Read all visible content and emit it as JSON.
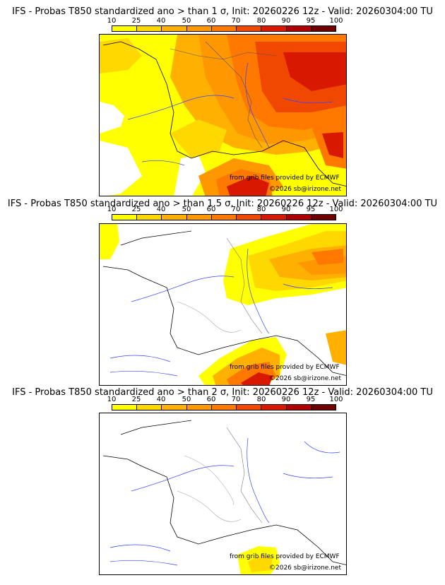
{
  "colorbar": {
    "ticks": [
      "10",
      "25",
      "40",
      "50",
      "60",
      "70",
      "80",
      "90",
      "95",
      "100"
    ],
    "colors": [
      "#ffff00",
      "#ffd800",
      "#ffb000",
      "#ff9800",
      "#ff7800",
      "#f04800",
      "#d81800",
      "#b00000",
      "#700000"
    ]
  },
  "panels": [
    {
      "title": "IFS - Probas T850  standardized ano > than 1 σ, Init: 20260226 12z - Valid: 20260304:00 TU",
      "credit_source": "from grib files provided by ECMWF",
      "credit_copyright": "©2026 sb@irizone.net"
    },
    {
      "title": "IFS - Probas T850  standardized ano > than 1.5 σ, Init: 20260226 12z - Valid: 20260304:00 TU",
      "credit_source": "from grib files provided by ECMWF",
      "credit_copyright": "©2026 sb@irizone.net"
    },
    {
      "title": "IFS - Probas T850  standardized ano > than 2 σ, Init: 20260226 12z - Valid: 20260304:00 TU",
      "credit_source": "from grib files provided by ECMWF",
      "credit_copyright": "©2026 sb@irizone.net"
    }
  ]
}
